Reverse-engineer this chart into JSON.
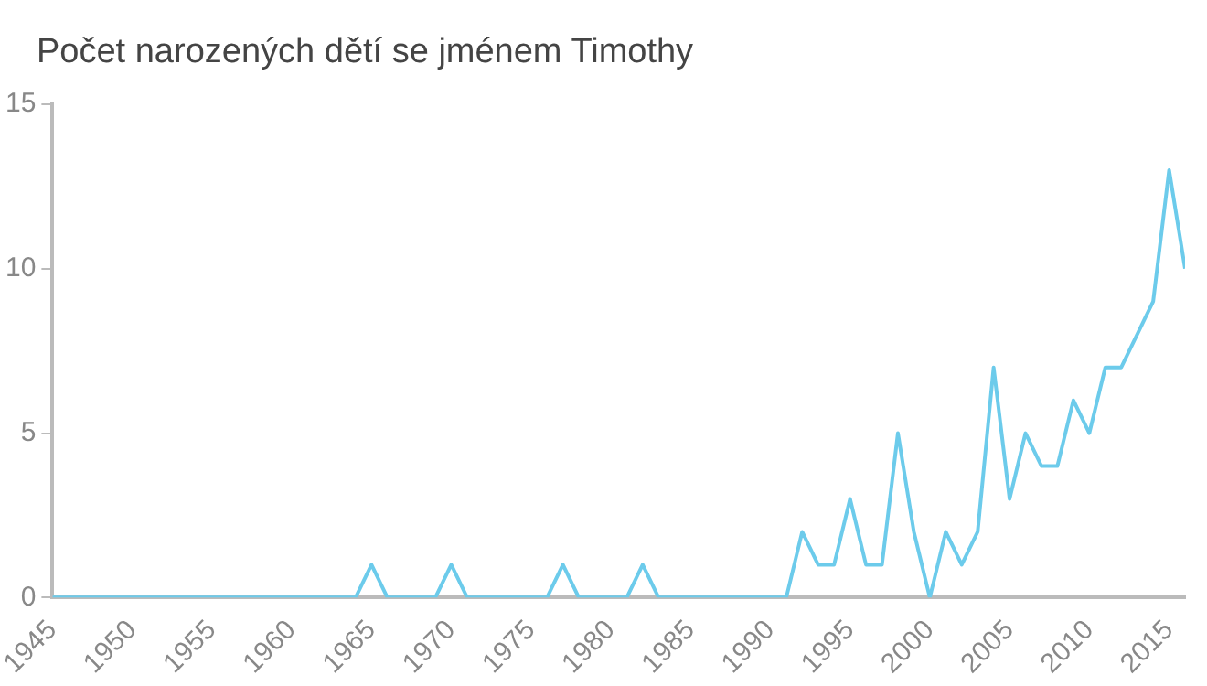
{
  "chart_data": {
    "type": "line",
    "title": "Počet narozených dětí se jménem Timothy",
    "x": [
      1945,
      1946,
      1947,
      1948,
      1949,
      1950,
      1951,
      1952,
      1953,
      1954,
      1955,
      1956,
      1957,
      1958,
      1959,
      1960,
      1961,
      1962,
      1963,
      1964,
      1965,
      1966,
      1967,
      1968,
      1969,
      1970,
      1971,
      1972,
      1973,
      1974,
      1975,
      1976,
      1977,
      1978,
      1979,
      1980,
      1981,
      1982,
      1983,
      1984,
      1985,
      1986,
      1987,
      1988,
      1989,
      1990,
      1991,
      1992,
      1993,
      1994,
      1995,
      1996,
      1997,
      1998,
      1999,
      2000,
      2001,
      2002,
      2003,
      2004,
      2005,
      2006,
      2007,
      2008,
      2009,
      2010,
      2011,
      2012,
      2013,
      2014,
      2015,
      2016
    ],
    "series": [
      {
        "color": "#6ccbeb",
        "values": [
          0,
          0,
          0,
          0,
          0,
          0,
          0,
          0,
          0,
          0,
          0,
          0,
          0,
          0,
          0,
          0,
          0,
          0,
          0,
          0,
          1,
          0,
          0,
          0,
          0,
          1,
          0,
          0,
          0,
          0,
          0,
          0,
          1,
          0,
          0,
          0,
          0,
          1,
          0,
          0,
          0,
          0,
          0,
          0,
          0,
          0,
          0,
          2,
          1,
          1,
          3,
          1,
          1,
          5,
          2,
          0,
          2,
          1,
          2,
          7,
          3,
          5,
          4,
          4,
          6,
          5,
          7,
          7,
          8,
          9,
          13,
          10
        ]
      }
    ],
    "xlim": [
      1945,
      2016
    ],
    "xticks": [
      1945,
      1950,
      1955,
      1960,
      1965,
      1970,
      1975,
      1980,
      1985,
      1990,
      1995,
      2000,
      2005,
      2010,
      2015
    ],
    "ylim": [
      0,
      15
    ],
    "yticks": [
      0,
      5,
      10,
      15
    ],
    "grid": false,
    "legend": false,
    "marker": "none",
    "line_style": "solid"
  }
}
